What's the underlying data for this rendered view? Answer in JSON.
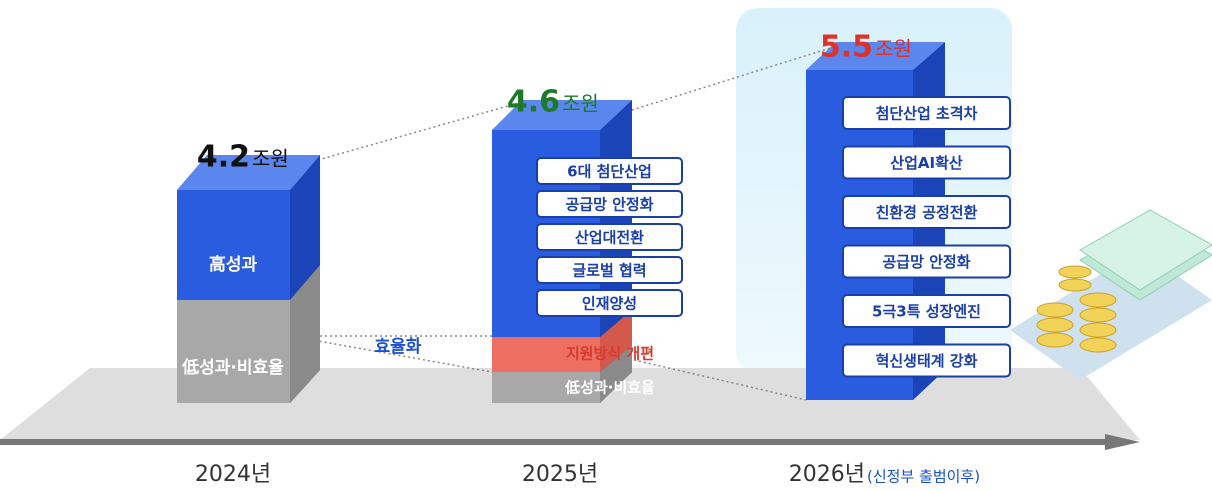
{
  "columns": [
    {
      "year": "2024년",
      "amount": "4.2",
      "unit": "조원",
      "segments": [
        "高성과",
        "低성과·비효율"
      ]
    },
    {
      "year": "2025년",
      "amount": "4.6",
      "unit": "조원",
      "items": [
        "6대 첨단산업",
        "공급망 안정화",
        "산업대전환",
        "글로벌 협력",
        "인재양성"
      ],
      "segments": [
        "지원방식 개편",
        "低성과·비효율"
      ]
    },
    {
      "year": "2026년",
      "year_note": "(신정부 출범이후)",
      "amount": "5.5",
      "unit": "조원",
      "items": [
        "첨단산업 초격차",
        "산업AI확산",
        "친환경 공정전환",
        "공급망 안정화",
        "5극3특 성장엔진",
        "혁신생태계 강화"
      ]
    }
  ],
  "efficiency_label": "효율화"
}
